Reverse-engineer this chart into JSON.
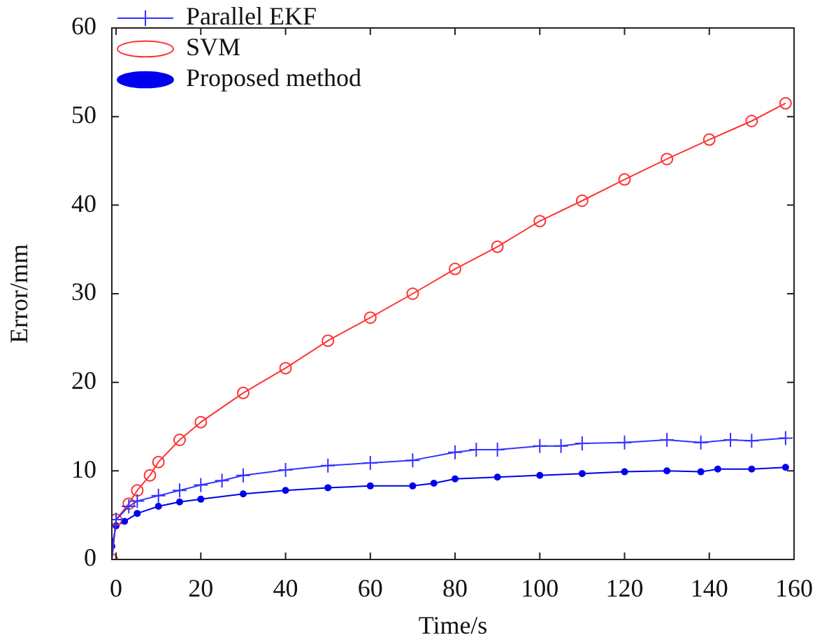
{
  "chart_data": {
    "type": "line",
    "xlabel": "Time/s",
    "ylabel": "Error/mm",
    "xlim": [
      -1,
      160
    ],
    "xticks": [
      0,
      20,
      40,
      60,
      80,
      100,
      120,
      140,
      160
    ],
    "ylim": [
      0,
      60
    ],
    "yticks": [
      0,
      10,
      20,
      30,
      40,
      50,
      60
    ],
    "grid": false,
    "legend": "top left",
    "line_style": "solid",
    "series": [
      {
        "name": "Parallel EKF",
        "color": "#3333ff",
        "marker": "cross",
        "x": [
          -1,
          0,
          3,
          5,
          10,
          15,
          20,
          25,
          30,
          40,
          50,
          60,
          70,
          80,
          85,
          90,
          100,
          105,
          110,
          120,
          130,
          138,
          145,
          150,
          158
        ],
        "values": [
          0,
          4.5,
          6,
          6.6,
          7.2,
          7.8,
          8.4,
          8.9,
          9.5,
          10.1,
          10.6,
          10.9,
          11.2,
          12.1,
          12.4,
          12.4,
          12.8,
          12.8,
          13.1,
          13.2,
          13.5,
          13.2,
          13.5,
          13.4,
          13.7
        ]
      },
      {
        "name": "SVM",
        "color": "#ff3333",
        "marker": "circle",
        "x": [
          -1,
          0,
          3,
          5,
          8,
          10,
          15,
          20,
          30,
          40,
          50,
          60,
          70,
          80,
          90,
          100,
          110,
          120,
          130,
          140,
          150,
          158
        ],
        "values": [
          0,
          4.5,
          6.3,
          7.8,
          9.5,
          11,
          13.5,
          15.5,
          18.8,
          21.6,
          24.7,
          27.3,
          30,
          32.8,
          35.3,
          38.2,
          40.5,
          42.9,
          45.2,
          47.4,
          49.5,
          51.5
        ]
      },
      {
        "name": "Proposed method",
        "color": "#0000ee",
        "marker": "dot",
        "x": [
          -1,
          0,
          2,
          5,
          10,
          15,
          20,
          30,
          40,
          50,
          60,
          70,
          75,
          80,
          90,
          100,
          110,
          120,
          130,
          138,
          142,
          150,
          158
        ],
        "values": [
          1.5,
          3.8,
          4.3,
          5.2,
          6,
          6.5,
          6.8,
          7.4,
          7.8,
          8.1,
          8.3,
          8.3,
          8.6,
          9.1,
          9.3,
          9.5,
          9.7,
          9.9,
          10,
          9.9,
          10.2,
          10.2,
          10.4
        ]
      }
    ]
  }
}
